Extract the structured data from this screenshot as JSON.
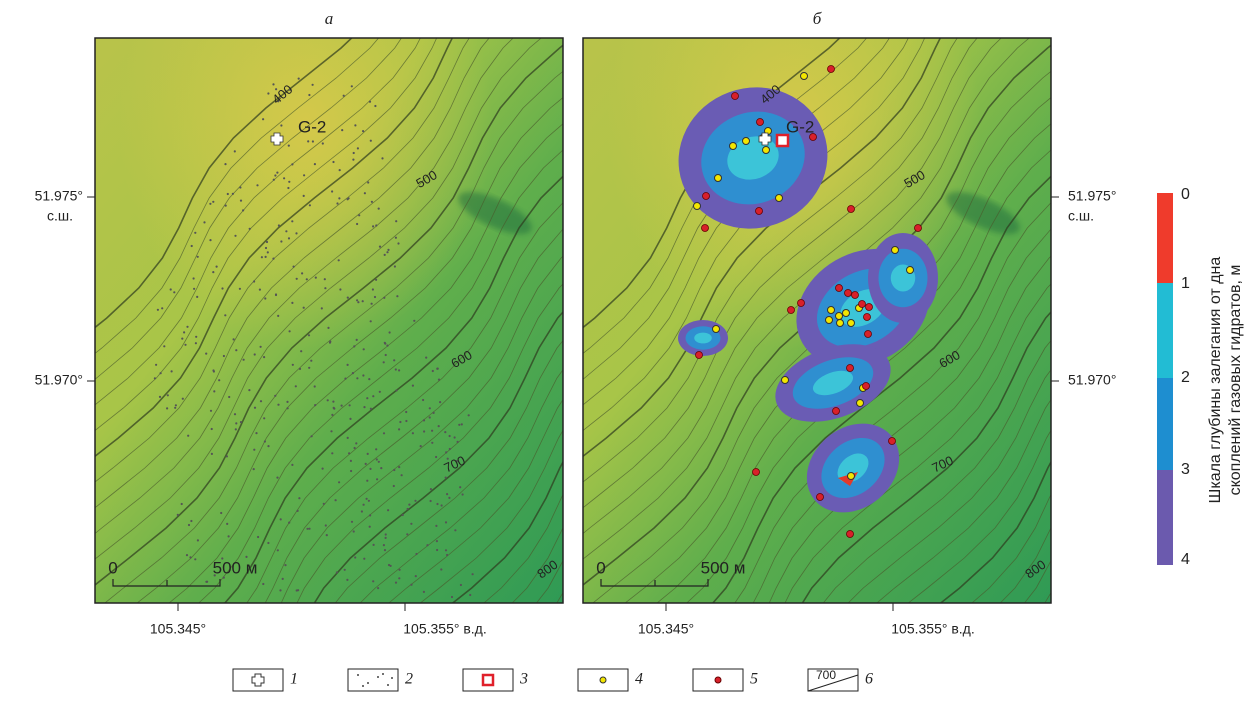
{
  "panels": [
    {
      "label": "а",
      "contours": [
        "400",
        "500",
        "600",
        "700",
        "800"
      ],
      "well": "G-2",
      "scale": {
        "start": "0",
        "end": "500 м"
      },
      "lat": [
        {
          "label": "51.975°",
          "hemisphere": "с.ш."
        },
        {
          "label": "51.970°"
        }
      ],
      "lon": [
        "105.345°",
        "105.355° в.д."
      ]
    },
    {
      "label": "б",
      "contours": [
        "400",
        "500",
        "600",
        "700",
        "800"
      ],
      "well": "G-2",
      "scale": {
        "start": "0",
        "end": "500 м"
      },
      "lat": [
        {
          "label": "51.975°",
          "hemisphere": "с.ш."
        },
        {
          "label": "51.970°"
        }
      ],
      "lon": [
        "105.345°",
        "105.355° в.д."
      ]
    }
  ],
  "colorbar": {
    "title": [
      "Шкала глубины залегания  от дна",
      "скоплений газовых гидратов, м"
    ],
    "ticks": [
      "0",
      "1",
      "2",
      "3",
      "4"
    ]
  },
  "legend": [
    {
      "number": "1"
    },
    {
      "number": "2"
    },
    {
      "number": "3"
    },
    {
      "number": "4"
    },
    {
      "number": "5"
    },
    {
      "number": "6",
      "sample": "700"
    }
  ]
}
